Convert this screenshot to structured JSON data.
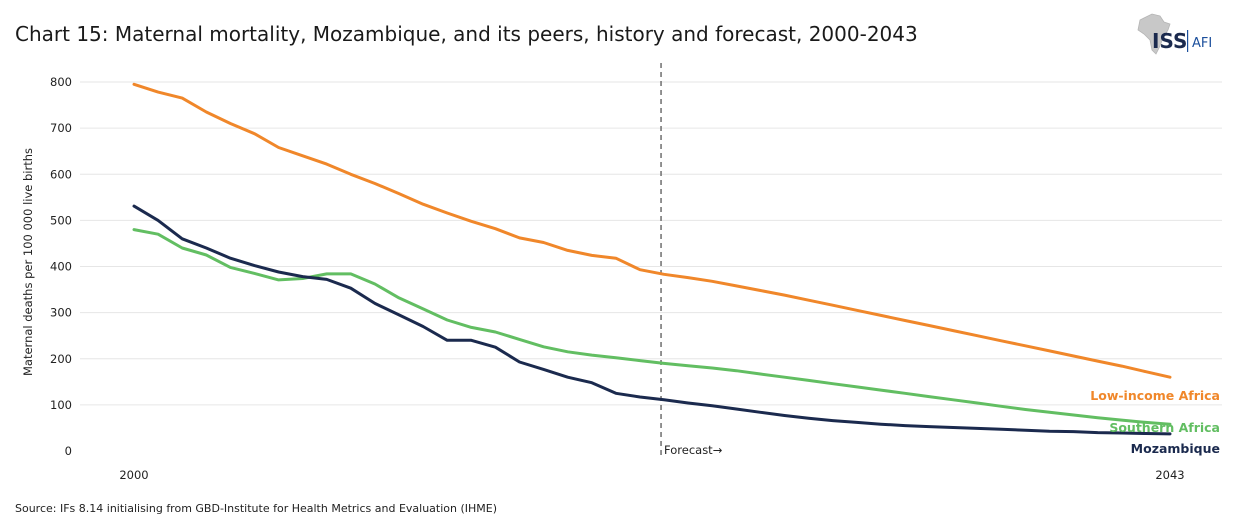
{
  "title": "Chart 15: Maternal mortality, Mozambique, and its peers, history and forecast, 2000-2043",
  "source": "Source: IFs 8.14 initialising from GBD-Institute for Health Metrics and Evaluation (IHME)",
  "logo": {
    "org": "ISS",
    "sub": "AFI"
  },
  "colors": {
    "low_income": "#F0872A",
    "southern": "#62BE62",
    "mozambique": "#1B2A4E",
    "forecast_line": "#777777",
    "grid": "#e6e6e6"
  },
  "chart_data": {
    "type": "line",
    "title": "Chart 15: Maternal mortality, Mozambique, and its peers, history and forecast, 2000-2043",
    "xlabel": "",
    "ylabel": "Maternal deaths per 100 000 live births",
    "xlim": [
      2000,
      2043
    ],
    "ylim": [
      0,
      800
    ],
    "yticks": [
      0,
      100,
      200,
      300,
      400,
      500,
      600,
      700,
      800
    ],
    "xtick_labels": [
      {
        "x": 2000,
        "label": "2000"
      },
      {
        "x": 2043,
        "label": "2043"
      }
    ],
    "forecast": {
      "x": 2022,
      "label": "Forecast→"
    },
    "x": [
      2000,
      2001,
      2002,
      2003,
      2004,
      2005,
      2006,
      2007,
      2008,
      2009,
      2010,
      2011,
      2012,
      2013,
      2014,
      2015,
      2016,
      2017,
      2018,
      2019,
      2020,
      2021,
      2022,
      2023,
      2024,
      2025,
      2026,
      2027,
      2028,
      2029,
      2030,
      2031,
      2032,
      2033,
      2034,
      2035,
      2036,
      2037,
      2038,
      2039,
      2040,
      2041,
      2042,
      2043
    ],
    "series": [
      {
        "name": "Low-income Africa",
        "color": "#F0872A",
        "values": [
          795,
          778,
          765,
          735,
          710,
          688,
          658,
          640,
          622,
          600,
          580,
          558,
          535,
          516,
          498,
          482,
          462,
          452,
          435,
          424,
          418,
          393,
          383,
          376,
          368,
          358,
          348,
          338,
          327,
          316,
          305,
          294,
          283,
          272,
          261,
          250,
          239,
          228,
          217,
          206,
          195,
          184,
          172,
          160
        ]
      },
      {
        "name": "Southern Africa",
        "color": "#62BE62",
        "values": [
          480,
          470,
          440,
          425,
          398,
          385,
          371,
          374,
          384,
          384,
          362,
          332,
          308,
          284,
          268,
          258,
          242,
          226,
          215,
          208,
          202,
          196,
          190,
          185,
          180,
          174,
          167,
          160,
          153,
          146,
          139,
          132,
          125,
          118,
          111,
          104,
          97,
          90,
          84,
          78,
          72,
          67,
          62,
          58
        ]
      },
      {
        "name": "Mozambique",
        "color": "#1B2A4E",
        "values": [
          531,
          500,
          460,
          440,
          418,
          402,
          388,
          378,
          372,
          353,
          320,
          295,
          270,
          240,
          240,
          225,
          193,
          177,
          160,
          148,
          125,
          117,
          111,
          104,
          98,
          91,
          84,
          77,
          71,
          66,
          62,
          58,
          55,
          53,
          51,
          49,
          47,
          45,
          43,
          42,
          40,
          39,
          38,
          37
        ]
      }
    ]
  }
}
